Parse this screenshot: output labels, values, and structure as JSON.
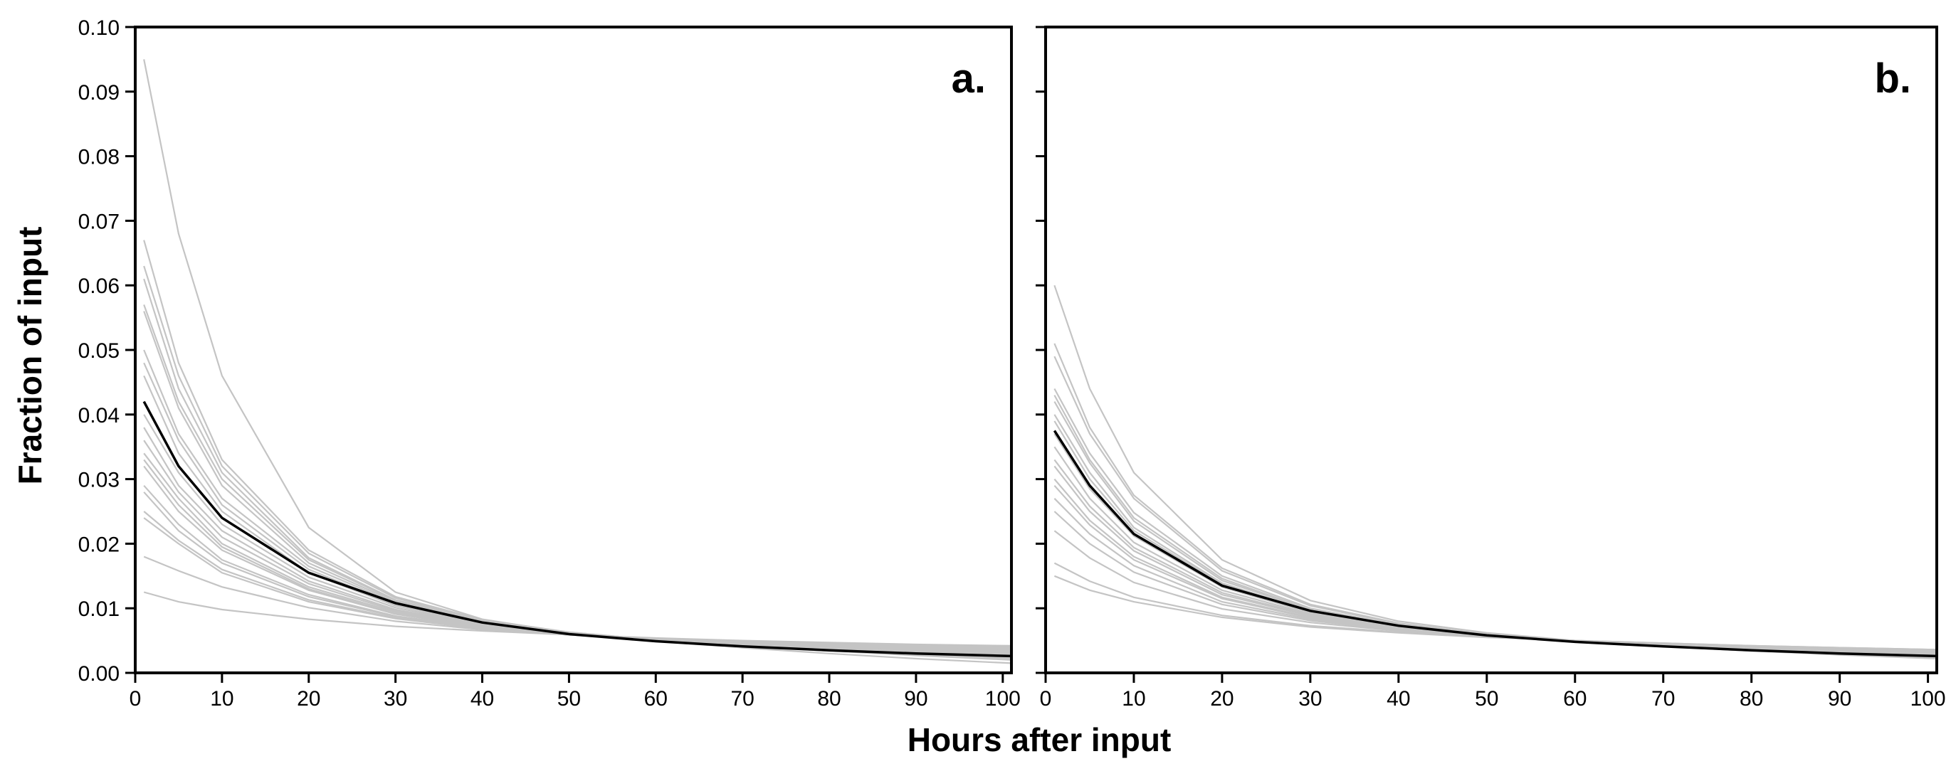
{
  "chart_data": {
    "type": "line",
    "xlabel": "Hours after input",
    "ylabel": "Fraction of input",
    "xlim": [
      0,
      101
    ],
    "ylim": [
      0,
      0.1
    ],
    "x_ticks": [
      0,
      10,
      20,
      30,
      40,
      50,
      60,
      70,
      80,
      90,
      100
    ],
    "x_tick_labels": [
      "0",
      "10",
      "20",
      "30",
      "40",
      "50",
      "60",
      "70",
      "80",
      "90",
      "100"
    ],
    "y_ticks": [
      0,
      0.01,
      0.02,
      0.03,
      0.04,
      0.05,
      0.06,
      0.07,
      0.08,
      0.09,
      0.1
    ],
    "y_tick_labels": [
      "0.00",
      "0.01",
      "0.02",
      "0.03",
      "0.04",
      "0.05",
      "0.06",
      "0.07",
      "0.08",
      "0.09",
      "0.10"
    ],
    "grid": false,
    "legend": "none",
    "colors": {
      "individual": "#c4c4c4",
      "mean": "#000000"
    },
    "x": [
      1,
      5,
      10,
      20,
      30,
      40,
      50,
      60,
      70,
      80,
      90,
      101
    ],
    "panels": [
      {
        "label": "a.",
        "mean": [
          0.042,
          0.032,
          0.024,
          0.0155,
          0.0108,
          0.0078,
          0.006,
          0.0049,
          0.0041,
          0.0035,
          0.003,
          0.0026
        ],
        "individual": [
          [
            0.095,
            0.068,
            0.046,
            0.0225,
            0.0125,
            0.0083,
            0.0062,
            0.0049,
            0.0039,
            0.003,
            0.0022,
            0.0015
          ],
          [
            0.067,
            0.048,
            0.033,
            0.019,
            0.0118,
            0.0082,
            0.0063,
            0.0051,
            0.0042,
            0.0034,
            0.0027,
            0.002
          ],
          [
            0.063,
            0.046,
            0.032,
            0.0185,
            0.0116,
            0.0081,
            0.0063,
            0.0051,
            0.0042,
            0.0034,
            0.0028,
            0.0022
          ],
          [
            0.061,
            0.044,
            0.031,
            0.0178,
            0.0113,
            0.008,
            0.0062,
            0.0051,
            0.0043,
            0.0036,
            0.003,
            0.0024
          ],
          [
            0.057,
            0.042,
            0.03,
            0.0175,
            0.0112,
            0.008,
            0.0062,
            0.0051,
            0.0043,
            0.0036,
            0.0031,
            0.0026
          ],
          [
            0.056,
            0.041,
            0.029,
            0.017,
            0.011,
            0.0079,
            0.0062,
            0.0051,
            0.0043,
            0.0037,
            0.0032,
            0.0027
          ],
          [
            0.05,
            0.037,
            0.027,
            0.0165,
            0.0108,
            0.0078,
            0.0061,
            0.0051,
            0.0043,
            0.0037,
            0.0032,
            0.0028
          ],
          [
            0.048,
            0.036,
            0.026,
            0.016,
            0.0106,
            0.0077,
            0.0061,
            0.0051,
            0.0044,
            0.0038,
            0.0033,
            0.0029
          ],
          [
            0.046,
            0.034,
            0.025,
            0.0155,
            0.0104,
            0.0076,
            0.006,
            0.0051,
            0.0044,
            0.0038,
            0.0033,
            0.003
          ],
          [
            0.04,
            0.031,
            0.023,
            0.0148,
            0.0101,
            0.0075,
            0.006,
            0.0051,
            0.0044,
            0.0039,
            0.0034,
            0.003
          ],
          [
            0.038,
            0.029,
            0.022,
            0.0142,
            0.0098,
            0.0074,
            0.006,
            0.0051,
            0.0045,
            0.004,
            0.0035,
            0.0031
          ],
          [
            0.036,
            0.028,
            0.021,
            0.0138,
            0.0096,
            0.0073,
            0.006,
            0.0051,
            0.0045,
            0.004,
            0.0036,
            0.0032
          ],
          [
            0.034,
            0.027,
            0.02,
            0.0133,
            0.0094,
            0.0072,
            0.0059,
            0.0051,
            0.0045,
            0.0041,
            0.0037,
            0.0033
          ],
          [
            0.033,
            0.026,
            0.0195,
            0.013,
            0.0092,
            0.0071,
            0.0059,
            0.0051,
            0.0046,
            0.0041,
            0.0037,
            0.0034
          ],
          [
            0.032,
            0.025,
            0.019,
            0.0128,
            0.0091,
            0.0071,
            0.0059,
            0.0052,
            0.0046,
            0.0042,
            0.0038,
            0.0035
          ],
          [
            0.029,
            0.023,
            0.0175,
            0.0121,
            0.0088,
            0.007,
            0.0059,
            0.0052,
            0.0047,
            0.0043,
            0.0039,
            0.0036
          ],
          [
            0.028,
            0.022,
            0.017,
            0.0118,
            0.0087,
            0.0069,
            0.0059,
            0.0052,
            0.0047,
            0.0043,
            0.004,
            0.0037
          ],
          [
            0.025,
            0.0205,
            0.016,
            0.0113,
            0.0085,
            0.0069,
            0.0059,
            0.0053,
            0.0048,
            0.0044,
            0.0041,
            0.0038
          ],
          [
            0.024,
            0.02,
            0.0155,
            0.011,
            0.0084,
            0.0068,
            0.0059,
            0.0053,
            0.0048,
            0.0045,
            0.0042,
            0.0039
          ],
          [
            0.018,
            0.0158,
            0.0133,
            0.0101,
            0.008,
            0.0067,
            0.0059,
            0.0053,
            0.0049,
            0.0046,
            0.0043,
            0.004
          ],
          [
            0.0125,
            0.011,
            0.0098,
            0.0083,
            0.0072,
            0.0065,
            0.0059,
            0.0054,
            0.005,
            0.0047,
            0.0044,
            0.0042
          ]
        ]
      },
      {
        "label": "b.",
        "mean": [
          0.0375,
          0.029,
          0.0215,
          0.0135,
          0.0096,
          0.0073,
          0.0058,
          0.0048,
          0.0041,
          0.0035,
          0.003,
          0.0026
        ],
        "individual": [
          [
            0.06,
            0.044,
            0.031,
            0.0175,
            0.0112,
            0.008,
            0.0062,
            0.005,
            0.0041,
            0.0034,
            0.0028,
            0.0022
          ],
          [
            0.051,
            0.038,
            0.0275,
            0.0162,
            0.0106,
            0.0077,
            0.006,
            0.0049,
            0.0041,
            0.0034,
            0.0029,
            0.0024
          ],
          [
            0.049,
            0.037,
            0.027,
            0.0158,
            0.0104,
            0.0076,
            0.006,
            0.0049,
            0.0041,
            0.0035,
            0.003,
            0.0025
          ],
          [
            0.044,
            0.034,
            0.0248,
            0.015,
            0.01,
            0.0074,
            0.0059,
            0.0049,
            0.0042,
            0.0036,
            0.0031,
            0.0026
          ],
          [
            0.043,
            0.033,
            0.024,
            0.0146,
            0.0098,
            0.0073,
            0.0059,
            0.0049,
            0.0042,
            0.0036,
            0.0031,
            0.0027
          ],
          [
            0.042,
            0.0325,
            0.0235,
            0.0143,
            0.0097,
            0.0073,
            0.0058,
            0.0049,
            0.0042,
            0.0037,
            0.0032,
            0.0027
          ],
          [
            0.04,
            0.031,
            0.0225,
            0.0139,
            0.0095,
            0.0072,
            0.0058,
            0.0049,
            0.0042,
            0.0037,
            0.0032,
            0.0028
          ],
          [
            0.039,
            0.03,
            0.022,
            0.0137,
            0.0094,
            0.0072,
            0.0058,
            0.0049,
            0.0043,
            0.0037,
            0.0033,
            0.0028
          ],
          [
            0.037,
            0.0285,
            0.0212,
            0.0133,
            0.0093,
            0.0071,
            0.0058,
            0.0049,
            0.0043,
            0.0038,
            0.0033,
            0.0029
          ],
          [
            0.035,
            0.027,
            0.0202,
            0.0128,
            0.0091,
            0.007,
            0.0057,
            0.0049,
            0.0043,
            0.0038,
            0.0034,
            0.003
          ],
          [
            0.033,
            0.0258,
            0.0194,
            0.0124,
            0.0089,
            0.0069,
            0.0057,
            0.0049,
            0.0043,
            0.0039,
            0.0035,
            0.0031
          ],
          [
            0.032,
            0.025,
            0.0189,
            0.0121,
            0.0088,
            0.0069,
            0.0057,
            0.0049,
            0.0044,
            0.0039,
            0.0035,
            0.0031
          ],
          [
            0.03,
            0.0236,
            0.018,
            0.0117,
            0.0086,
            0.0068,
            0.0057,
            0.0049,
            0.0044,
            0.004,
            0.0036,
            0.0032
          ],
          [
            0.029,
            0.0229,
            0.0175,
            0.0115,
            0.0085,
            0.0068,
            0.0057,
            0.0049,
            0.0044,
            0.004,
            0.0036,
            0.0033
          ],
          [
            0.027,
            0.0215,
            0.0166,
            0.011,
            0.0083,
            0.0067,
            0.0056,
            0.0049,
            0.0044,
            0.004,
            0.0037,
            0.0033
          ],
          [
            0.025,
            0.02,
            0.0156,
            0.0106,
            0.0081,
            0.0066,
            0.0056,
            0.005,
            0.0045,
            0.0041,
            0.0037,
            0.0034
          ],
          [
            0.022,
            0.0178,
            0.014,
            0.0099,
            0.0078,
            0.0065,
            0.0056,
            0.005,
            0.0045,
            0.0041,
            0.0038,
            0.0035
          ],
          [
            0.017,
            0.0142,
            0.0117,
            0.0089,
            0.0073,
            0.0063,
            0.0056,
            0.005,
            0.0046,
            0.0042,
            0.0039,
            0.0036
          ],
          [
            0.015,
            0.0128,
            0.011,
            0.0086,
            0.0071,
            0.0062,
            0.0055,
            0.005,
            0.0046,
            0.0042,
            0.0039,
            0.0036
          ]
        ]
      }
    ]
  }
}
